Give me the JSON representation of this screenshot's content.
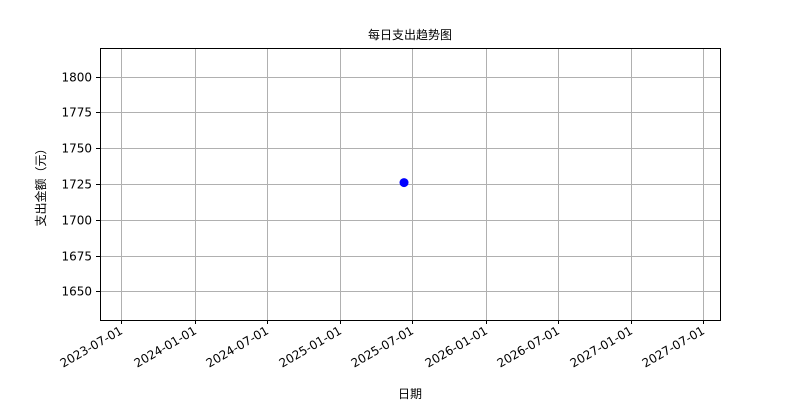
{
  "chart_data": {
    "type": "scatter",
    "title": "每日支出趋势图",
    "xlabel": "日期",
    "ylabel": "支出金额（元）",
    "x_type": "date",
    "xlim": [
      "2023-05-08",
      "2027-08-13"
    ],
    "ylim": [
      1630,
      1820
    ],
    "x_ticks": [
      "2023-07-01",
      "2024-01-01",
      "2024-07-01",
      "2025-01-01",
      "2025-07-01",
      "2026-01-01",
      "2026-07-01",
      "2027-01-01",
      "2027-07-01"
    ],
    "y_ticks": [
      1650,
      1675,
      1700,
      1725,
      1750,
      1775,
      1800
    ],
    "grid": true,
    "series": [
      {
        "color": "#0000ff",
        "points": [
          {
            "x": "2025-06-10",
            "y": 1726
          }
        ]
      }
    ]
  }
}
